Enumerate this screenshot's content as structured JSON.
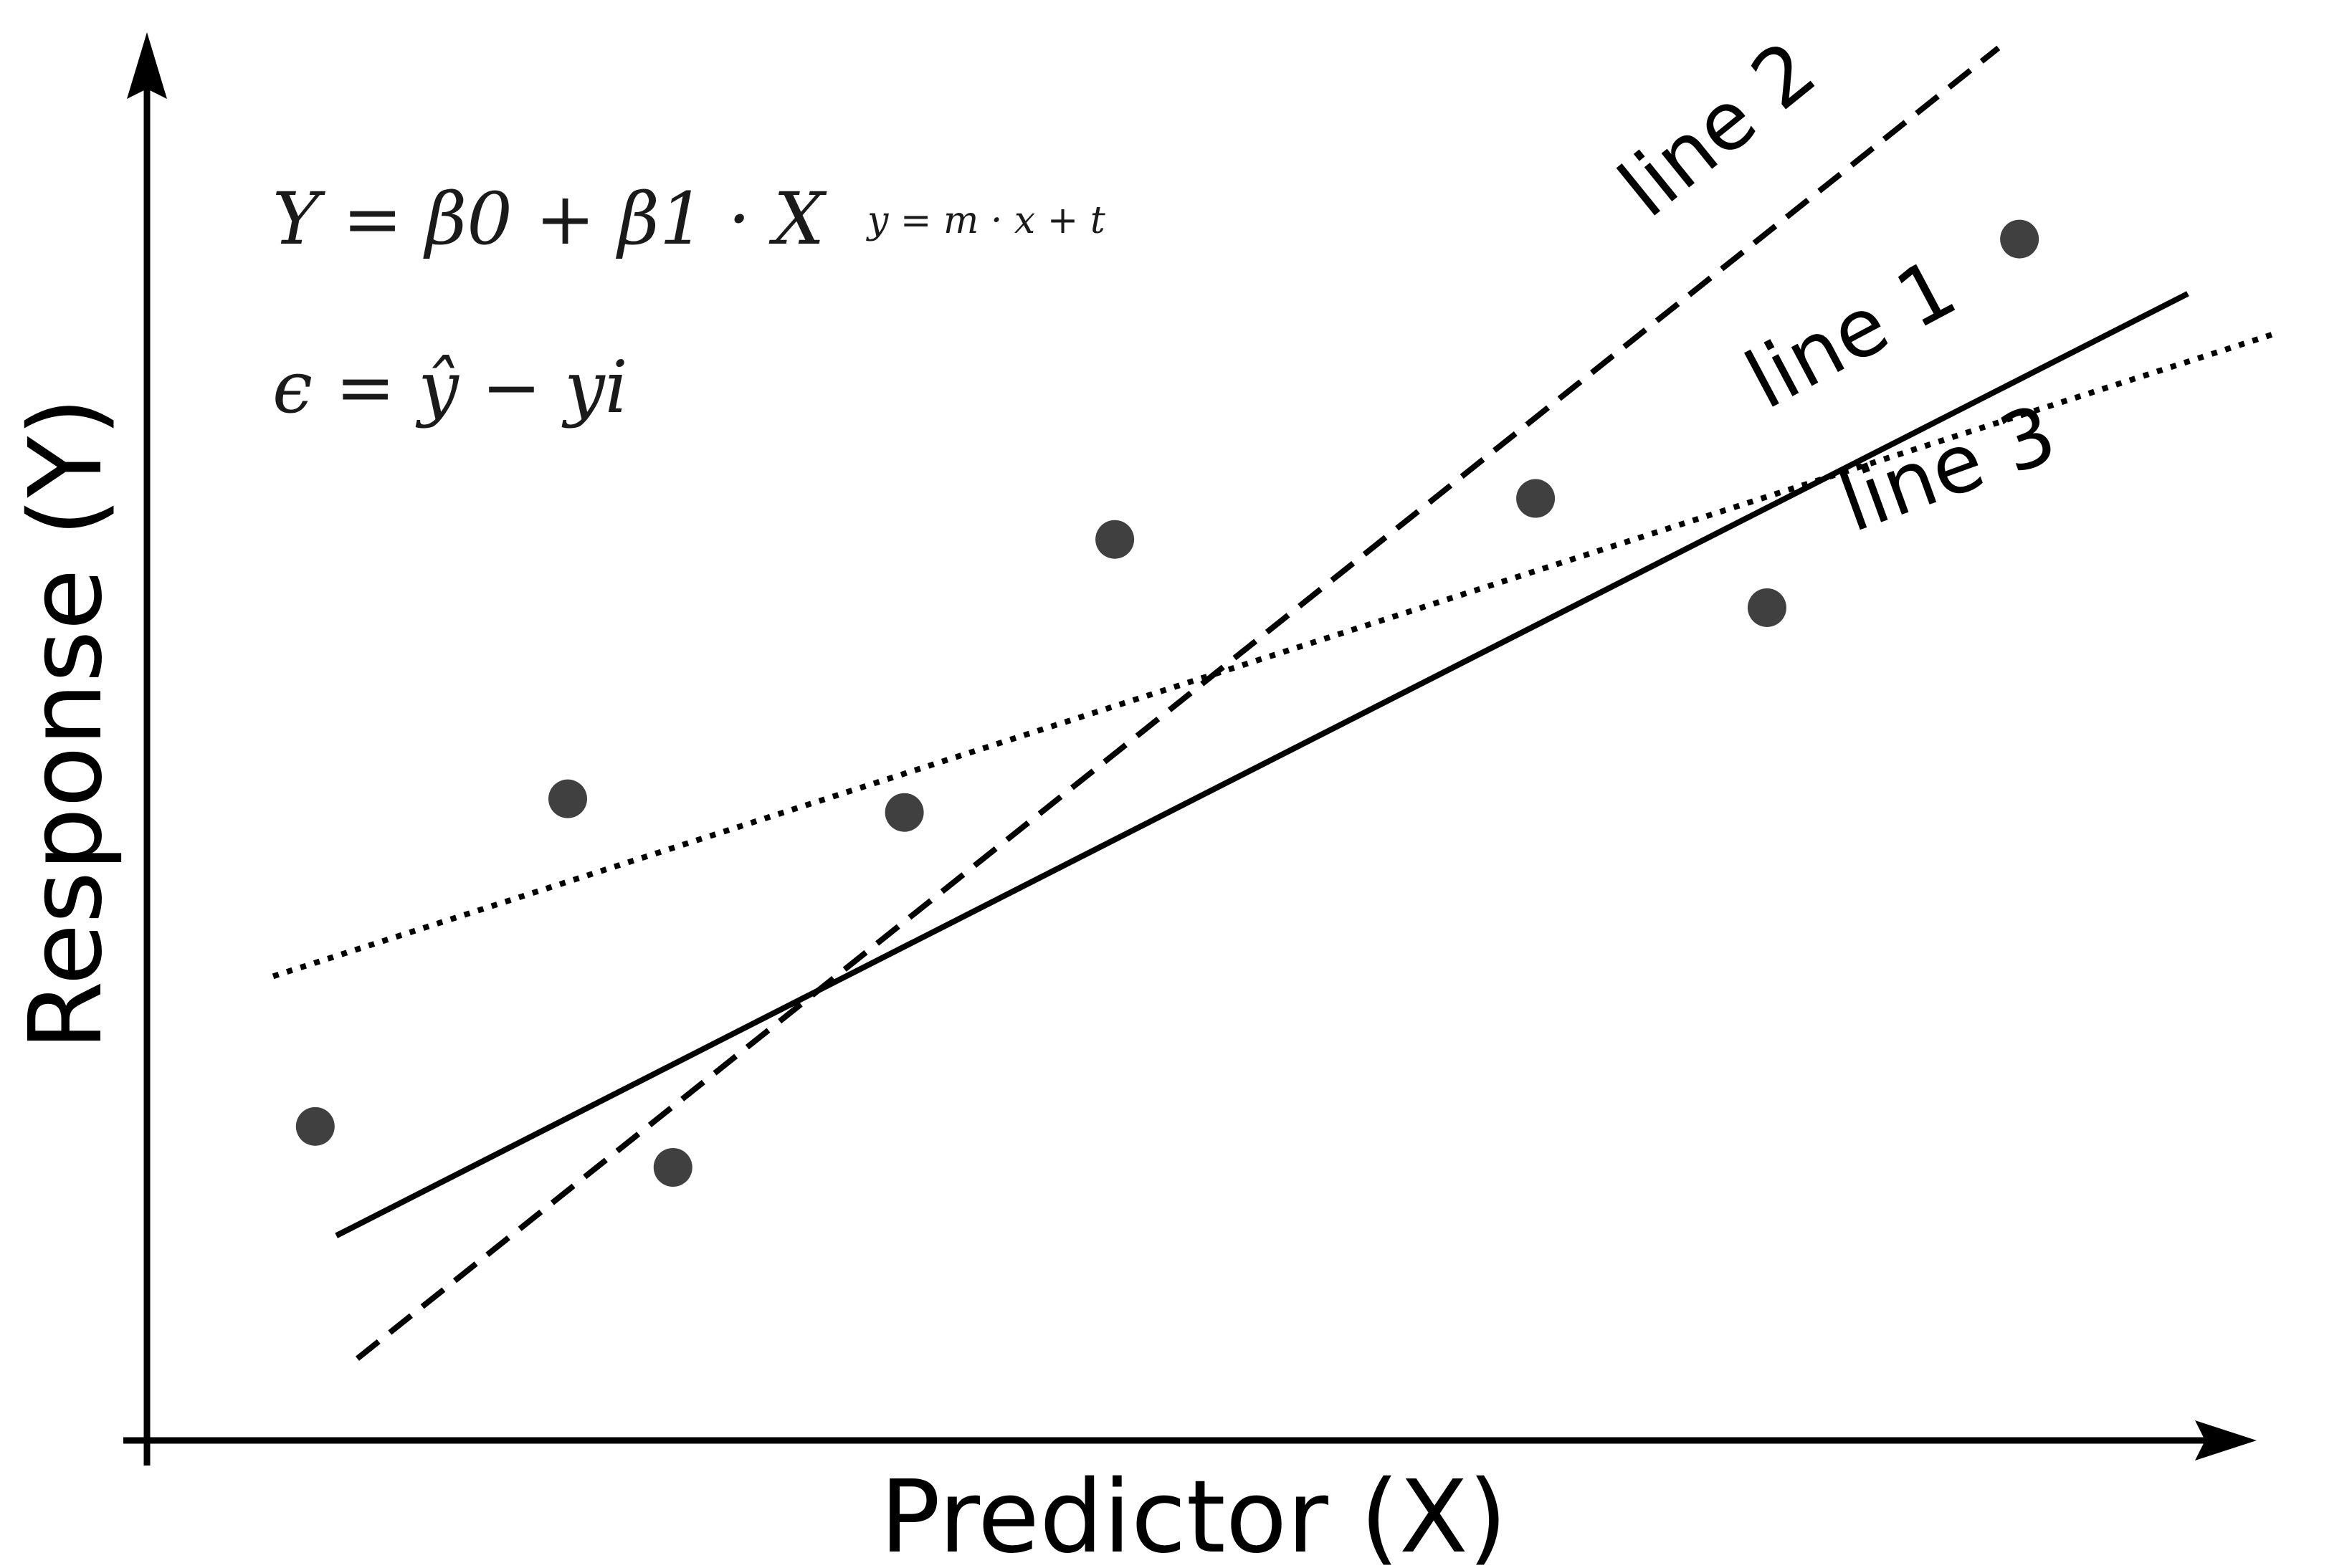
{
  "chart_data": {
    "type": "scatter",
    "title": "",
    "xlabel": "Predictor (X)",
    "ylabel": "Response (Y)",
    "xlim": [
      0,
      100
    ],
    "ylim": [
      0,
      100
    ],
    "grid": false,
    "axis_ticks": false,
    "colors": {
      "axis": "#000000",
      "points": "#404040",
      "lines": "#000000"
    },
    "points": [
      {
        "x": 8,
        "y": 23
      },
      {
        "x": 20,
        "y": 47
      },
      {
        "x": 25,
        "y": 20
      },
      {
        "x": 36,
        "y": 46
      },
      {
        "x": 46,
        "y": 66
      },
      {
        "x": 66,
        "y": 69
      },
      {
        "x": 77,
        "y": 61
      },
      {
        "x": 89,
        "y": 88
      }
    ],
    "lines": [
      {
        "label": "line 1",
        "style": "solid",
        "x": [
          9,
          97
        ],
        "y": [
          15,
          84
        ]
      },
      {
        "label": "line 2",
        "style": "dashed",
        "x": [
          10,
          88
        ],
        "y": [
          6,
          102
        ]
      },
      {
        "label": "line 3",
        "style": "dotted",
        "x": [
          6,
          101
        ],
        "y": [
          34,
          81
        ]
      }
    ],
    "annotations": {
      "equation_main": "Y = β0 + β1 · X",
      "equation_small": "y = m · x + t",
      "equation_error": "ϵ = ŷ − yi"
    }
  }
}
